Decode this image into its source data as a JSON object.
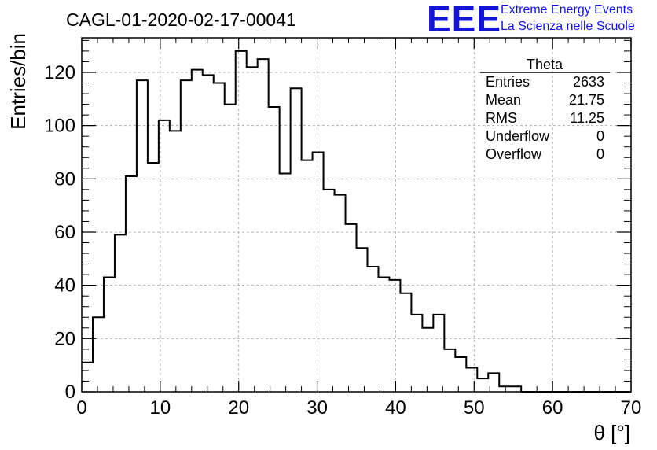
{
  "header": {
    "logo_text": "EEE",
    "logo_line1": "Extreme Energy Events",
    "logo_line2": "La Scienza nelle Scuole"
  },
  "chart_data": {
    "type": "bar",
    "histogram": true,
    "title": "CAGL-01-2020-02-17-00041",
    "xlabel": "θ [°]",
    "ylabel": "Entries/bin",
    "xlim": [
      0,
      70
    ],
    "ylim": [
      0,
      133
    ],
    "grid": true,
    "bin_width": 1.4,
    "x_ticks": [
      0,
      10,
      20,
      30,
      40,
      50,
      60,
      70
    ],
    "y_ticks": [
      0,
      20,
      40,
      60,
      80,
      100,
      120
    ],
    "values": [
      11,
      28,
      43,
      59,
      81,
      117,
      86,
      102,
      98,
      117,
      121,
      119,
      116,
      108,
      128,
      122,
      125,
      107,
      82,
      114,
      87,
      90,
      76,
      74,
      63,
      54,
      47,
      43,
      42,
      37,
      29,
      24,
      29,
      16,
      13,
      9,
      5,
      7,
      2,
      2,
      0,
      0,
      0,
      0,
      0,
      0,
      0,
      0,
      0,
      0
    ],
    "stats_box": {
      "title": "Theta",
      "rows": [
        {
          "label": "Entries",
          "value": "2633"
        },
        {
          "label": "Mean",
          "value": "21.75"
        },
        {
          "label": "RMS",
          "value": "11.25"
        },
        {
          "label": "Underflow",
          "value": "0"
        },
        {
          "label": "Overflow",
          "value": "0"
        }
      ]
    },
    "colors": {
      "line": "#000000",
      "grid": "#b0b0b0",
      "logo": "#1515d8"
    }
  }
}
